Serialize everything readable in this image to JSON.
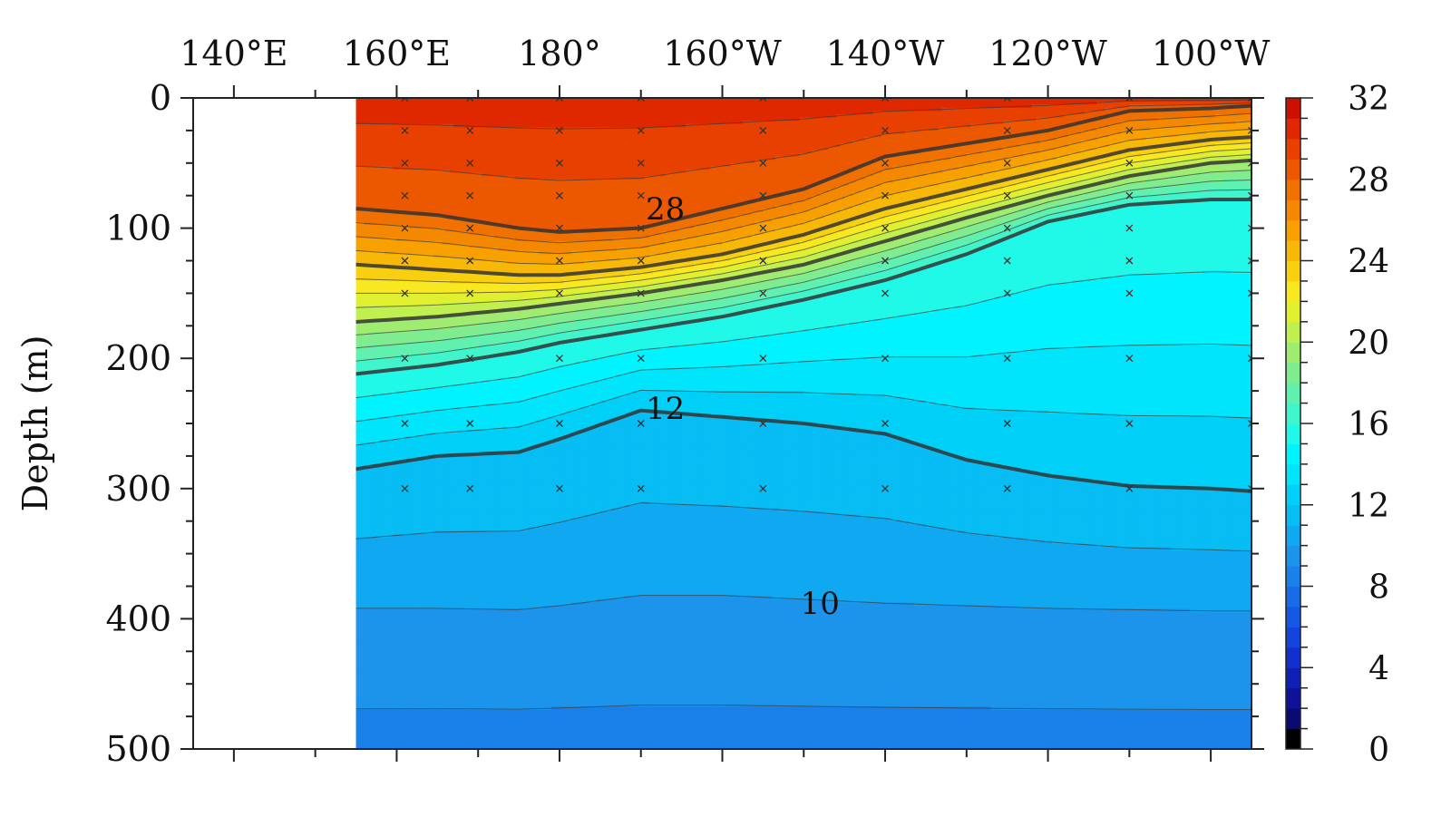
{
  "chart_data": {
    "type": "heatmap",
    "title": "",
    "xlabel": "",
    "ylabel": "Depth (m)",
    "x_ticks": [
      "140°E",
      "160°E",
      "180°",
      "160°W",
      "140°W",
      "120°W",
      "100°W"
    ],
    "x_tick_values": [
      140,
      160,
      180,
      200,
      220,
      240,
      260
    ],
    "xlim": [
      135,
      265
    ],
    "data_x_start": 155,
    "y_ticks": [
      "0",
      "100",
      "200",
      "300",
      "400",
      "500"
    ],
    "y_tick_values": [
      0,
      100,
      200,
      300,
      400,
      500
    ],
    "ylim": [
      0,
      500
    ],
    "y_reversed": true,
    "colorbar": {
      "label": "",
      "ticks": [
        "0",
        "4",
        "8",
        "12",
        "16",
        "20",
        "24",
        "28",
        "32"
      ],
      "tick_values": [
        0,
        4,
        8,
        12,
        16,
        20,
        24,
        28,
        32
      ],
      "range": [
        0,
        32
      ],
      "step": 1,
      "colors": [
        "#000000",
        "#0a0a70",
        "#0d1296",
        "#1020b4",
        "#1230cc",
        "#1444dc",
        "#1658e6",
        "#186ce8",
        "#1a80ea",
        "#1c94ec",
        "#10a8f0",
        "#08bcf4",
        "#00d0f8",
        "#00e4fc",
        "#00f4ff",
        "#20f8e8",
        "#40f4cc",
        "#60f0b0",
        "#80ec90",
        "#a0ec70",
        "#c0f050",
        "#e0f030",
        "#f8e820",
        "#f8d010",
        "#f8b808",
        "#f8a000",
        "#f48800",
        "#f07000",
        "#ec5800",
        "#e84000",
        "#e02800",
        "#cc1000"
      ]
    },
    "contour_isotherms": [
      {
        "value": 28,
        "depth_profile": [
          [
            155,
            85
          ],
          [
            165,
            90
          ],
          [
            175,
            100
          ],
          [
            180,
            103
          ],
          [
            190,
            100
          ],
          [
            200,
            85
          ],
          [
            210,
            70
          ],
          [
            220,
            45
          ],
          [
            230,
            35
          ],
          [
            240,
            25
          ],
          [
            250,
            10
          ],
          [
            260,
            8
          ],
          [
            265,
            6
          ]
        ]
      },
      {
        "value": 24,
        "depth_profile": [
          [
            155,
            128
          ],
          [
            165,
            132
          ],
          [
            175,
            136
          ],
          [
            180,
            136
          ],
          [
            190,
            130
          ],
          [
            200,
            120
          ],
          [
            210,
            105
          ],
          [
            220,
            85
          ],
          [
            230,
            70
          ],
          [
            240,
            55
          ],
          [
            250,
            40
          ],
          [
            260,
            32
          ],
          [
            265,
            30
          ]
        ]
      },
      {
        "value": 20,
        "depth_profile": [
          [
            155,
            172
          ],
          [
            165,
            168
          ],
          [
            175,
            162
          ],
          [
            180,
            158
          ],
          [
            190,
            150
          ],
          [
            200,
            140
          ],
          [
            210,
            128
          ],
          [
            220,
            110
          ],
          [
            230,
            92
          ],
          [
            240,
            75
          ],
          [
            250,
            60
          ],
          [
            260,
            50
          ],
          [
            265,
            48
          ]
        ]
      },
      {
        "value": 16,
        "depth_profile": [
          [
            155,
            212
          ],
          [
            165,
            205
          ],
          [
            175,
            195
          ],
          [
            180,
            188
          ],
          [
            190,
            178
          ],
          [
            200,
            168
          ],
          [
            210,
            155
          ],
          [
            220,
            140
          ],
          [
            230,
            120
          ],
          [
            240,
            95
          ],
          [
            250,
            82
          ],
          [
            260,
            78
          ],
          [
            265,
            78
          ]
        ]
      },
      {
        "value": 12,
        "depth_profile": [
          [
            155,
            285
          ],
          [
            165,
            275
          ],
          [
            175,
            272
          ],
          [
            180,
            262
          ],
          [
            190,
            240
          ],
          [
            200,
            245
          ],
          [
            210,
            250
          ],
          [
            220,
            258
          ],
          [
            230,
            278
          ],
          [
            240,
            290
          ],
          [
            250,
            298
          ],
          [
            260,
            300
          ],
          [
            265,
            302
          ]
        ]
      },
      {
        "value": 10,
        "depth_profile": [
          [
            155,
            392
          ],
          [
            165,
            392
          ],
          [
            175,
            393
          ],
          [
            180,
            390
          ],
          [
            190,
            382
          ],
          [
            200,
            382
          ],
          [
            210,
            385
          ],
          [
            220,
            388
          ],
          [
            230,
            390
          ],
          [
            240,
            392
          ],
          [
            250,
            393
          ],
          [
            260,
            394
          ],
          [
            265,
            394
          ]
        ]
      }
    ],
    "contour_labels": [
      {
        "text": "28",
        "x": 193,
        "depth": 85
      },
      {
        "text": "12",
        "x": 193,
        "depth": 238
      },
      {
        "text": "10",
        "x": 212,
        "depth": 388
      }
    ],
    "sample_stations_lon": [
      161,
      169,
      180,
      190,
      205,
      220,
      235,
      250,
      265
    ],
    "sample_depths": [
      0,
      25,
      50,
      75,
      100,
      125,
      150,
      200,
      250,
      300
    ]
  }
}
